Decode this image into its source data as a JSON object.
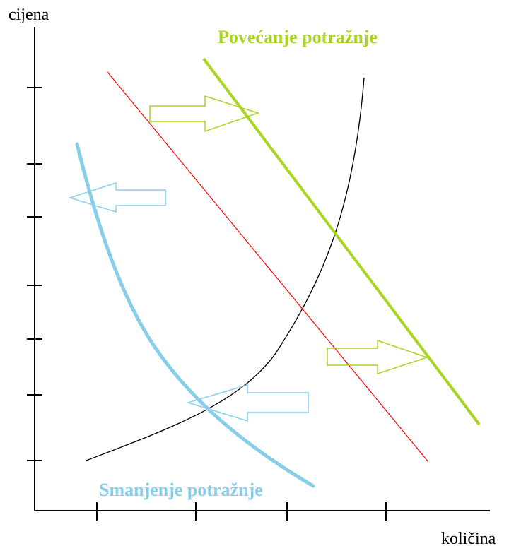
{
  "axes": {
    "y_label": "cijena",
    "x_label": "količina"
  },
  "labels": {
    "increase": "Povećanje potražnje",
    "decrease": "Smanjenje potražnje"
  },
  "colors": {
    "axis": "#000000",
    "supply": "#000000",
    "demand": "#ff0000",
    "increase": "#a6d61f",
    "decrease": "#87ceeb"
  },
  "arrows": {
    "increase_direction": "right",
    "decrease_direction": "left"
  }
}
